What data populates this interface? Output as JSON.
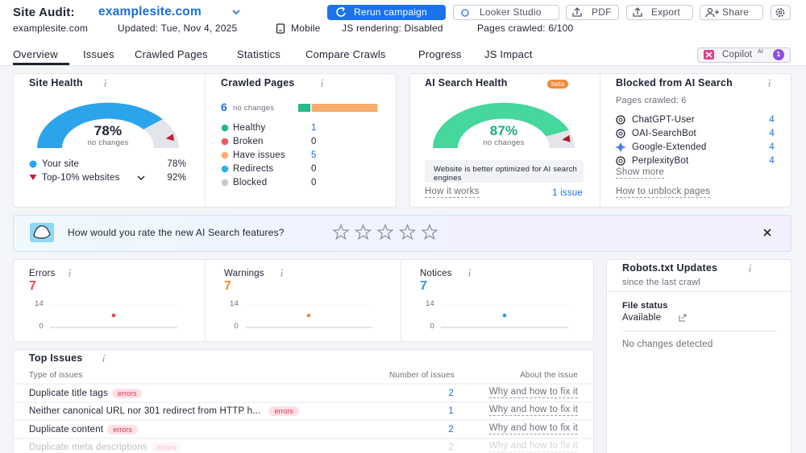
{
  "header": {
    "title": "Site Audit:",
    "domain": "examplesite.com",
    "buttons": [
      "Rerun campaign",
      "Looker Studio",
      "PDF",
      "Export",
      "Share"
    ],
    "meta": [
      "examplesite.com",
      "Updated: Tue, Nov 4, 2025",
      "Mobile",
      "JS rendering: Disabled",
      "Pages crawled: 6/100"
    ]
  },
  "tabs": [
    "Overview",
    "Issues",
    "Crawled Pages",
    "Statistics",
    "Compare Crawls",
    "Progress",
    "JS Impact"
  ],
  "copilot": {
    "label": "Copilot",
    "sup": "AI",
    "badge": "1"
  },
  "site_health": {
    "title": "Site Health",
    "range": [
      0,
      100
    ],
    "score": 78,
    "score_label": "78%",
    "note": "no changes",
    "color": "#2ba4ec",
    "legend": [
      {
        "name": "Your site",
        "label": "78%"
      },
      {
        "name": "Top-10% websites",
        "value": 92,
        "label": "92%"
      }
    ]
  },
  "crawled_pages": {
    "title": "Crawled Pages",
    "total": 6,
    "note": "no changes",
    "statuses": [
      {
        "name": "Healthy",
        "value": 1,
        "color": "#26b98a"
      },
      {
        "name": "Broken",
        "value": 0,
        "color": "#f0575f"
      },
      {
        "name": "Have issues",
        "value": 5,
        "color": "#f7ad6b"
      },
      {
        "name": "Redirects",
        "value": 0,
        "color": "#2fb0e6"
      },
      {
        "name": "Blocked",
        "value": 0,
        "color": "#c8cad2"
      }
    ]
  },
  "ai_search_health": {
    "title": "AI Search Health",
    "badge": "beta",
    "range": [
      0,
      100
    ],
    "score": 87,
    "score_label": "87%",
    "benchmark": 93,
    "note": "no changes",
    "color": "#45d79c",
    "message": "Website is better optimized for AI search engines",
    "link": "How it works",
    "issues_link": "1 issue"
  },
  "blocked": {
    "title": "Blocked from AI Search",
    "pages": "Pages crawled: 6",
    "bots": [
      {
        "name": "ChatGPT-User",
        "value": 4
      },
      {
        "name": "OAI-SearchBot",
        "value": 4
      },
      {
        "name": "Google-Extended",
        "value": 4
      },
      {
        "name": "PerplexityBot",
        "value": 4
      }
    ],
    "more": "Show more",
    "link": "How to unblock pages"
  },
  "feedback": {
    "question": "How would you rate the new AI Search features?"
  },
  "issue_counts": [
    {
      "title": "Errors",
      "value": 7,
      "color": "#e5484d",
      "yticks": [
        0,
        14
      ]
    },
    {
      "title": "Warnings",
      "value": 7,
      "color": "#f28a2e",
      "yticks": [
        0,
        14
      ]
    },
    {
      "title": "Notices",
      "value": 7,
      "color": "#2b9ae0",
      "yticks": [
        0,
        14
      ]
    }
  ],
  "robots": {
    "title": "Robots.txt Updates",
    "subtitle": "since the last crawl",
    "status_label": "File status",
    "status": "Available",
    "message": "No changes detected"
  },
  "top_issues": {
    "title": "Top Issues",
    "columns": [
      "Type of issues",
      "Number of issues",
      "About the issue"
    ],
    "rows": [
      {
        "name": "Duplicate title tags",
        "tag": "errors",
        "count": 2,
        "link": "Why and how to fix it"
      },
      {
        "name": "Neither canonical URL nor 301 redirect from HTTP h...",
        "tag": "errors",
        "count": 1,
        "link": "Why and how to fix it"
      },
      {
        "name": "Duplicate content",
        "tag": "errors",
        "count": 2,
        "link": "Why and how to fix it"
      },
      {
        "name": "Duplicate meta descriptions",
        "tag": "errors",
        "count": 2,
        "link": "Why and how to fix it"
      }
    ]
  }
}
